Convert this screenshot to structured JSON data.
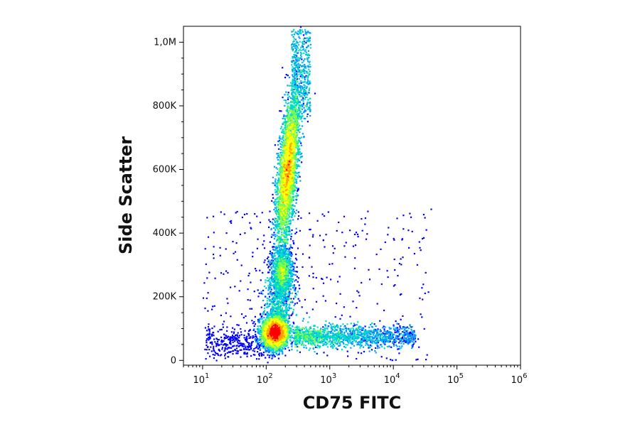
{
  "chart_data": {
    "type": "scatter",
    "style": "density-pseudocolor",
    "xlabel": "CD75 FITC",
    "ylabel": "Side Scatter",
    "x_scale": "log",
    "xlim": [
      5,
      1000000
    ],
    "ylim": [
      -15000,
      1050000
    ],
    "x_ticks": [
      {
        "value": 10,
        "base": "10",
        "exp": "1"
      },
      {
        "value": 100,
        "base": "10",
        "exp": "2"
      },
      {
        "value": 1000,
        "base": "10",
        "exp": "3"
      },
      {
        "value": 10000,
        "base": "10",
        "exp": "4"
      },
      {
        "value": 100000,
        "base": "10",
        "exp": "5"
      },
      {
        "value": 1000000,
        "base": "10",
        "exp": "6"
      }
    ],
    "y_ticks": [
      {
        "value": 0,
        "label": "0"
      },
      {
        "value": 200000,
        "label": "200K"
      },
      {
        "value": 400000,
        "label": "400K"
      },
      {
        "value": 600000,
        "label": "600K"
      },
      {
        "value": 800000,
        "label": "800K"
      },
      {
        "value": 1000000,
        "label": "1,0M"
      }
    ],
    "populations": [
      {
        "name_hint": "low-ssc cluster",
        "x_center": 140,
        "y_center": 90000,
        "relative_density": "highest"
      },
      {
        "name_hint": "mid-ssc cluster",
        "x_center": 180,
        "y_center": 280000,
        "relative_density": "medium"
      },
      {
        "name_hint": "high-ssc elongated cluster",
        "x_center": 230,
        "y_center": 600000,
        "relative_density": "high"
      },
      {
        "name_hint": "fitc-positive tail",
        "x_start": 300,
        "x_end": 20000,
        "y_center": 75000,
        "relative_density": "low"
      }
    ],
    "colormap": [
      "#0000ff",
      "#00a0ff",
      "#00e0c0",
      "#80ff40",
      "#ffff00",
      "#ffa000",
      "#ff0000"
    ],
    "grid": false,
    "legend": "none"
  }
}
